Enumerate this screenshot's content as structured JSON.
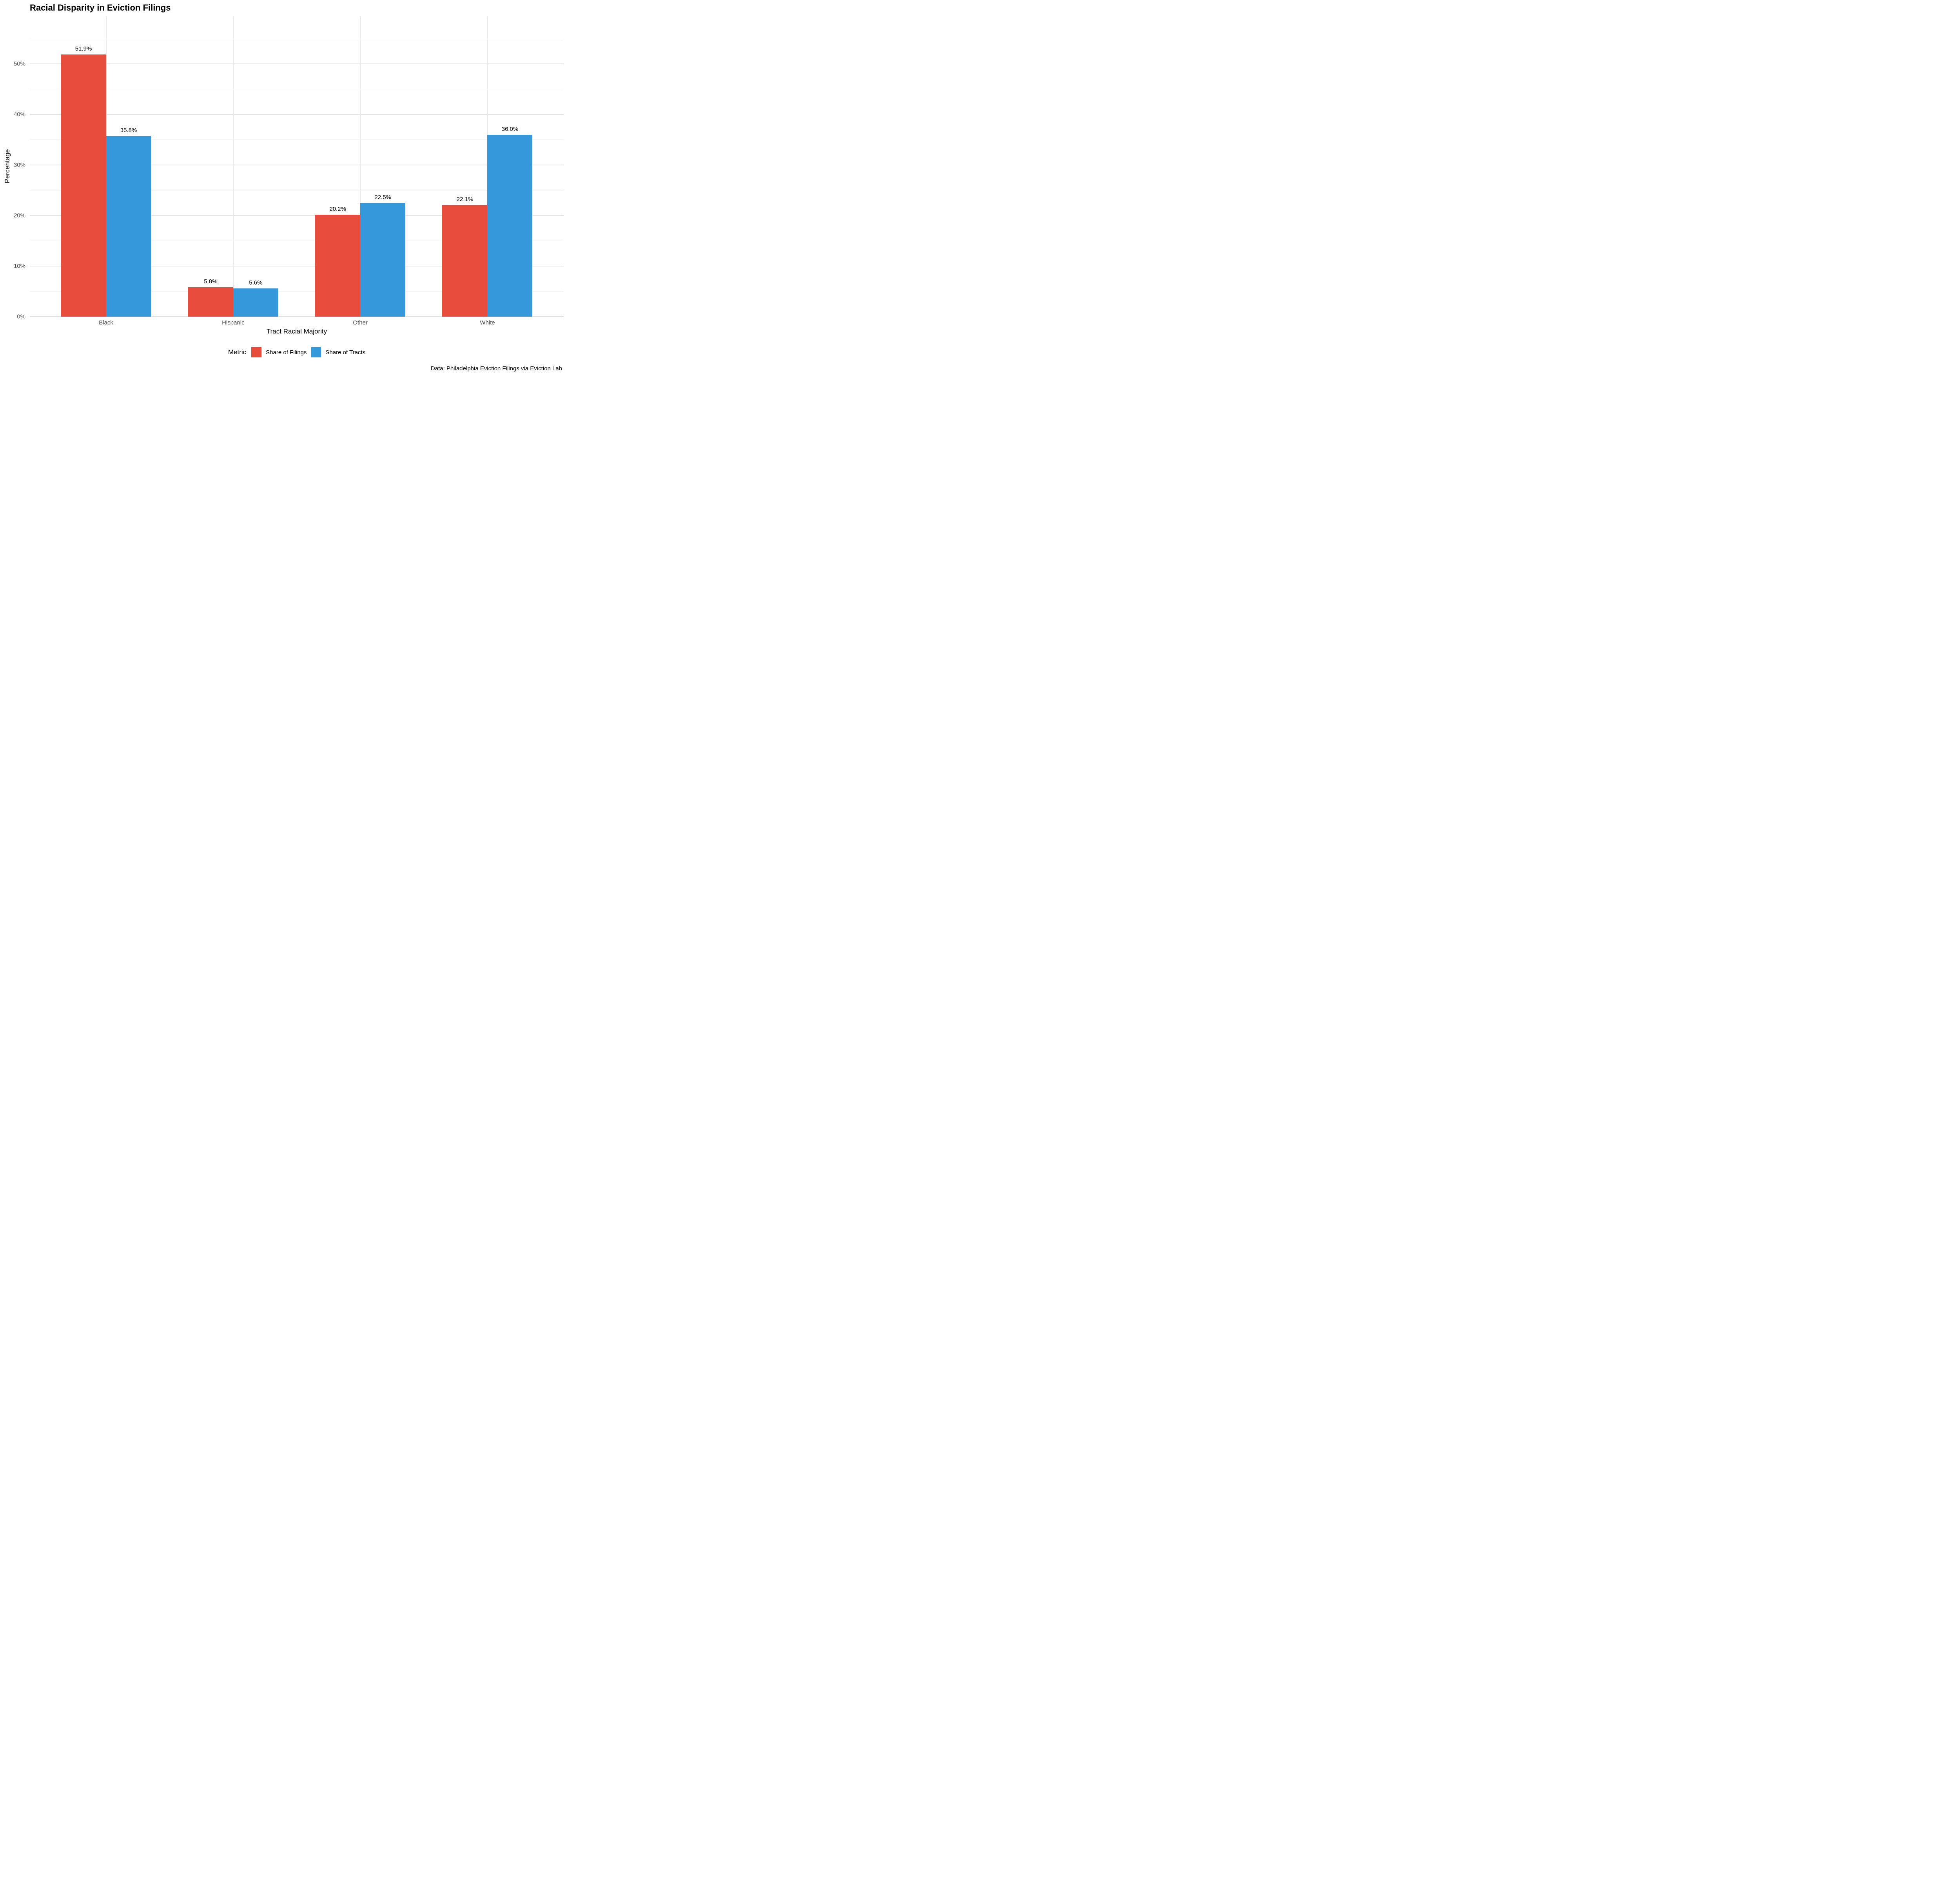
{
  "chart_data": {
    "type": "bar",
    "title": "Racial Disparity in Eviction Filings",
    "xlabel": "Tract Racial Majority",
    "ylabel": "Percentage",
    "categories": [
      "Black",
      "Hispanic",
      "Other",
      "White"
    ],
    "series": [
      {
        "name": "Share of Filings",
        "color": "#E74C3C",
        "values": [
          51.9,
          5.8,
          20.2,
          22.1
        ],
        "labels": [
          "51.9%",
          "5.8%",
          "20.2%",
          "22.1%"
        ]
      },
      {
        "name": "Share of Tracts",
        "color": "#3498DB",
        "values": [
          35.8,
          5.6,
          22.5,
          36.0
        ],
        "labels": [
          "35.8%",
          "5.6%",
          "22.5%",
          "36.0%"
        ]
      }
    ],
    "ylim": [
      0,
      59.5
    ],
    "yticks": [
      {
        "value": 0,
        "label": "0%"
      },
      {
        "value": 10,
        "label": "10%"
      },
      {
        "value": 20,
        "label": "20%"
      },
      {
        "value": 30,
        "label": "30%"
      },
      {
        "value": 40,
        "label": "40%"
      },
      {
        "value": 50,
        "label": "50%"
      }
    ],
    "yticks_minor": [
      5,
      15,
      25,
      35,
      45,
      55
    ],
    "grid": true,
    "legend_title": "Metric",
    "legend_position": "bottom",
    "caption": "Data: Philadelphia Eviction Filings via Eviction Lab",
    "colors": {
      "background": "#FFFFFF",
      "grid_major": "#E3E3E3",
      "grid_minor": "#F0F0F0",
      "tick_text": "#4D4D4D",
      "text": "#000000"
    }
  }
}
